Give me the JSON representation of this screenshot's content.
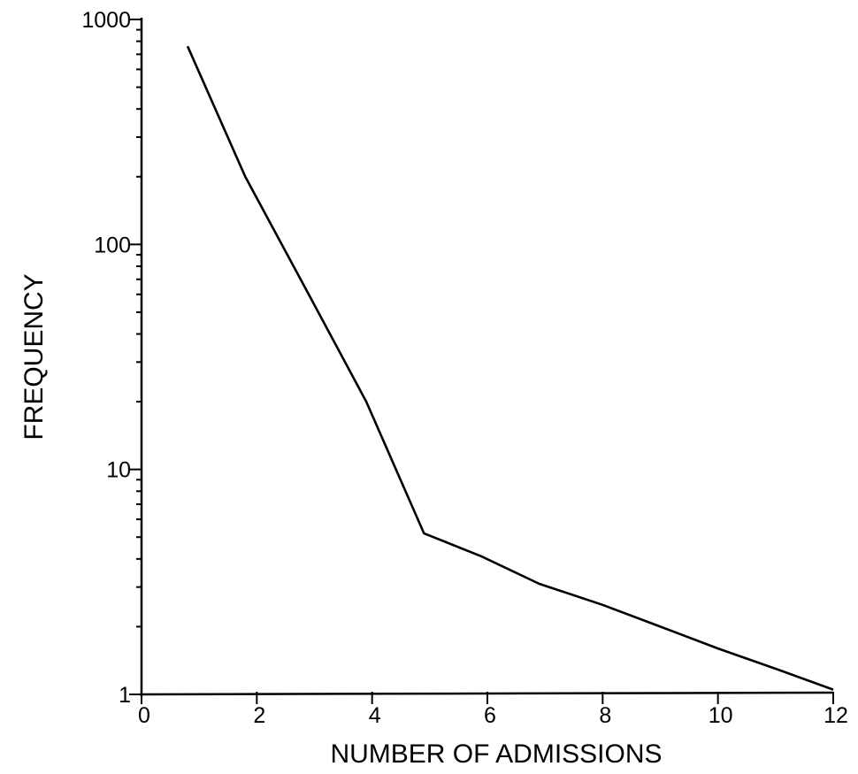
{
  "chart_data": {
    "type": "line",
    "xlabel": "NUMBER OF ADMISSIONS",
    "ylabel": "FREQUENCY",
    "xlim": [
      0,
      12
    ],
    "ylim": [
      1,
      1000
    ],
    "y_scale": "log",
    "grid": false,
    "x_ticks": [
      0,
      2,
      4,
      6,
      8,
      10,
      12
    ],
    "x_tick_labels": [
      "0",
      "2",
      "4",
      "6",
      "8",
      "10",
      "12"
    ],
    "y_ticks": [
      1,
      10,
      100,
      1000
    ],
    "y_tick_labels": [
      "1",
      "10",
      "100",
      "1000"
    ],
    "series": [
      {
        "x": [
          0.8,
          1.8,
          2.9,
          3.9,
          4.9,
          5.9,
          6.9,
          8.0,
          9.0,
          10.0,
          11.0,
          12.0
        ],
        "values": [
          760,
          200,
          60,
          20,
          5.2,
          4.1,
          3.1,
          2.5,
          2.0,
          1.6,
          1.3,
          1.05
        ]
      }
    ]
  }
}
